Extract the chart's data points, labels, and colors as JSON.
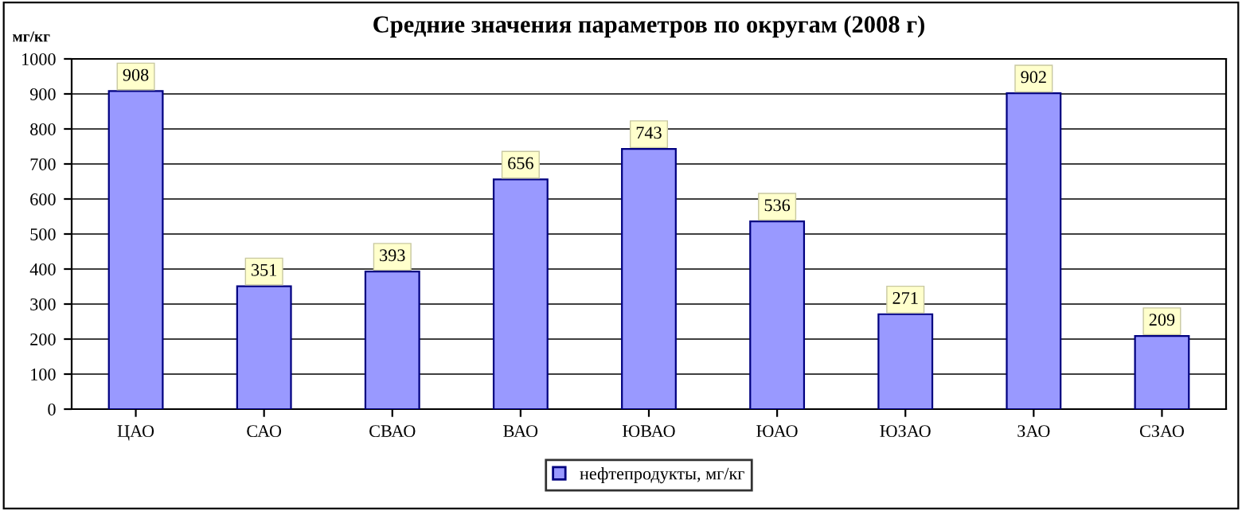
{
  "chart_data": {
    "type": "bar",
    "title": "Средние значения параметров по округам (2008 г)",
    "ylabel": "мг/кг",
    "categories": [
      "ЦАО",
      "САО",
      "СВАО",
      "ВАО",
      "ЮВАО",
      "ЮАО",
      "ЮЗАО",
      "ЗАО",
      "СЗАО"
    ],
    "series": [
      {
        "name": "нефтепродукты, мг/кг",
        "color": "#9999ff",
        "values": [
          908,
          351,
          393,
          656,
          743,
          536,
          271,
          902,
          209
        ]
      }
    ],
    "ylim": [
      0,
      1000
    ],
    "yticks": [
      0,
      100,
      200,
      300,
      400,
      500,
      600,
      700,
      800,
      900,
      1000
    ],
    "grid": "y",
    "legend": "bottom",
    "data_labels": true
  }
}
